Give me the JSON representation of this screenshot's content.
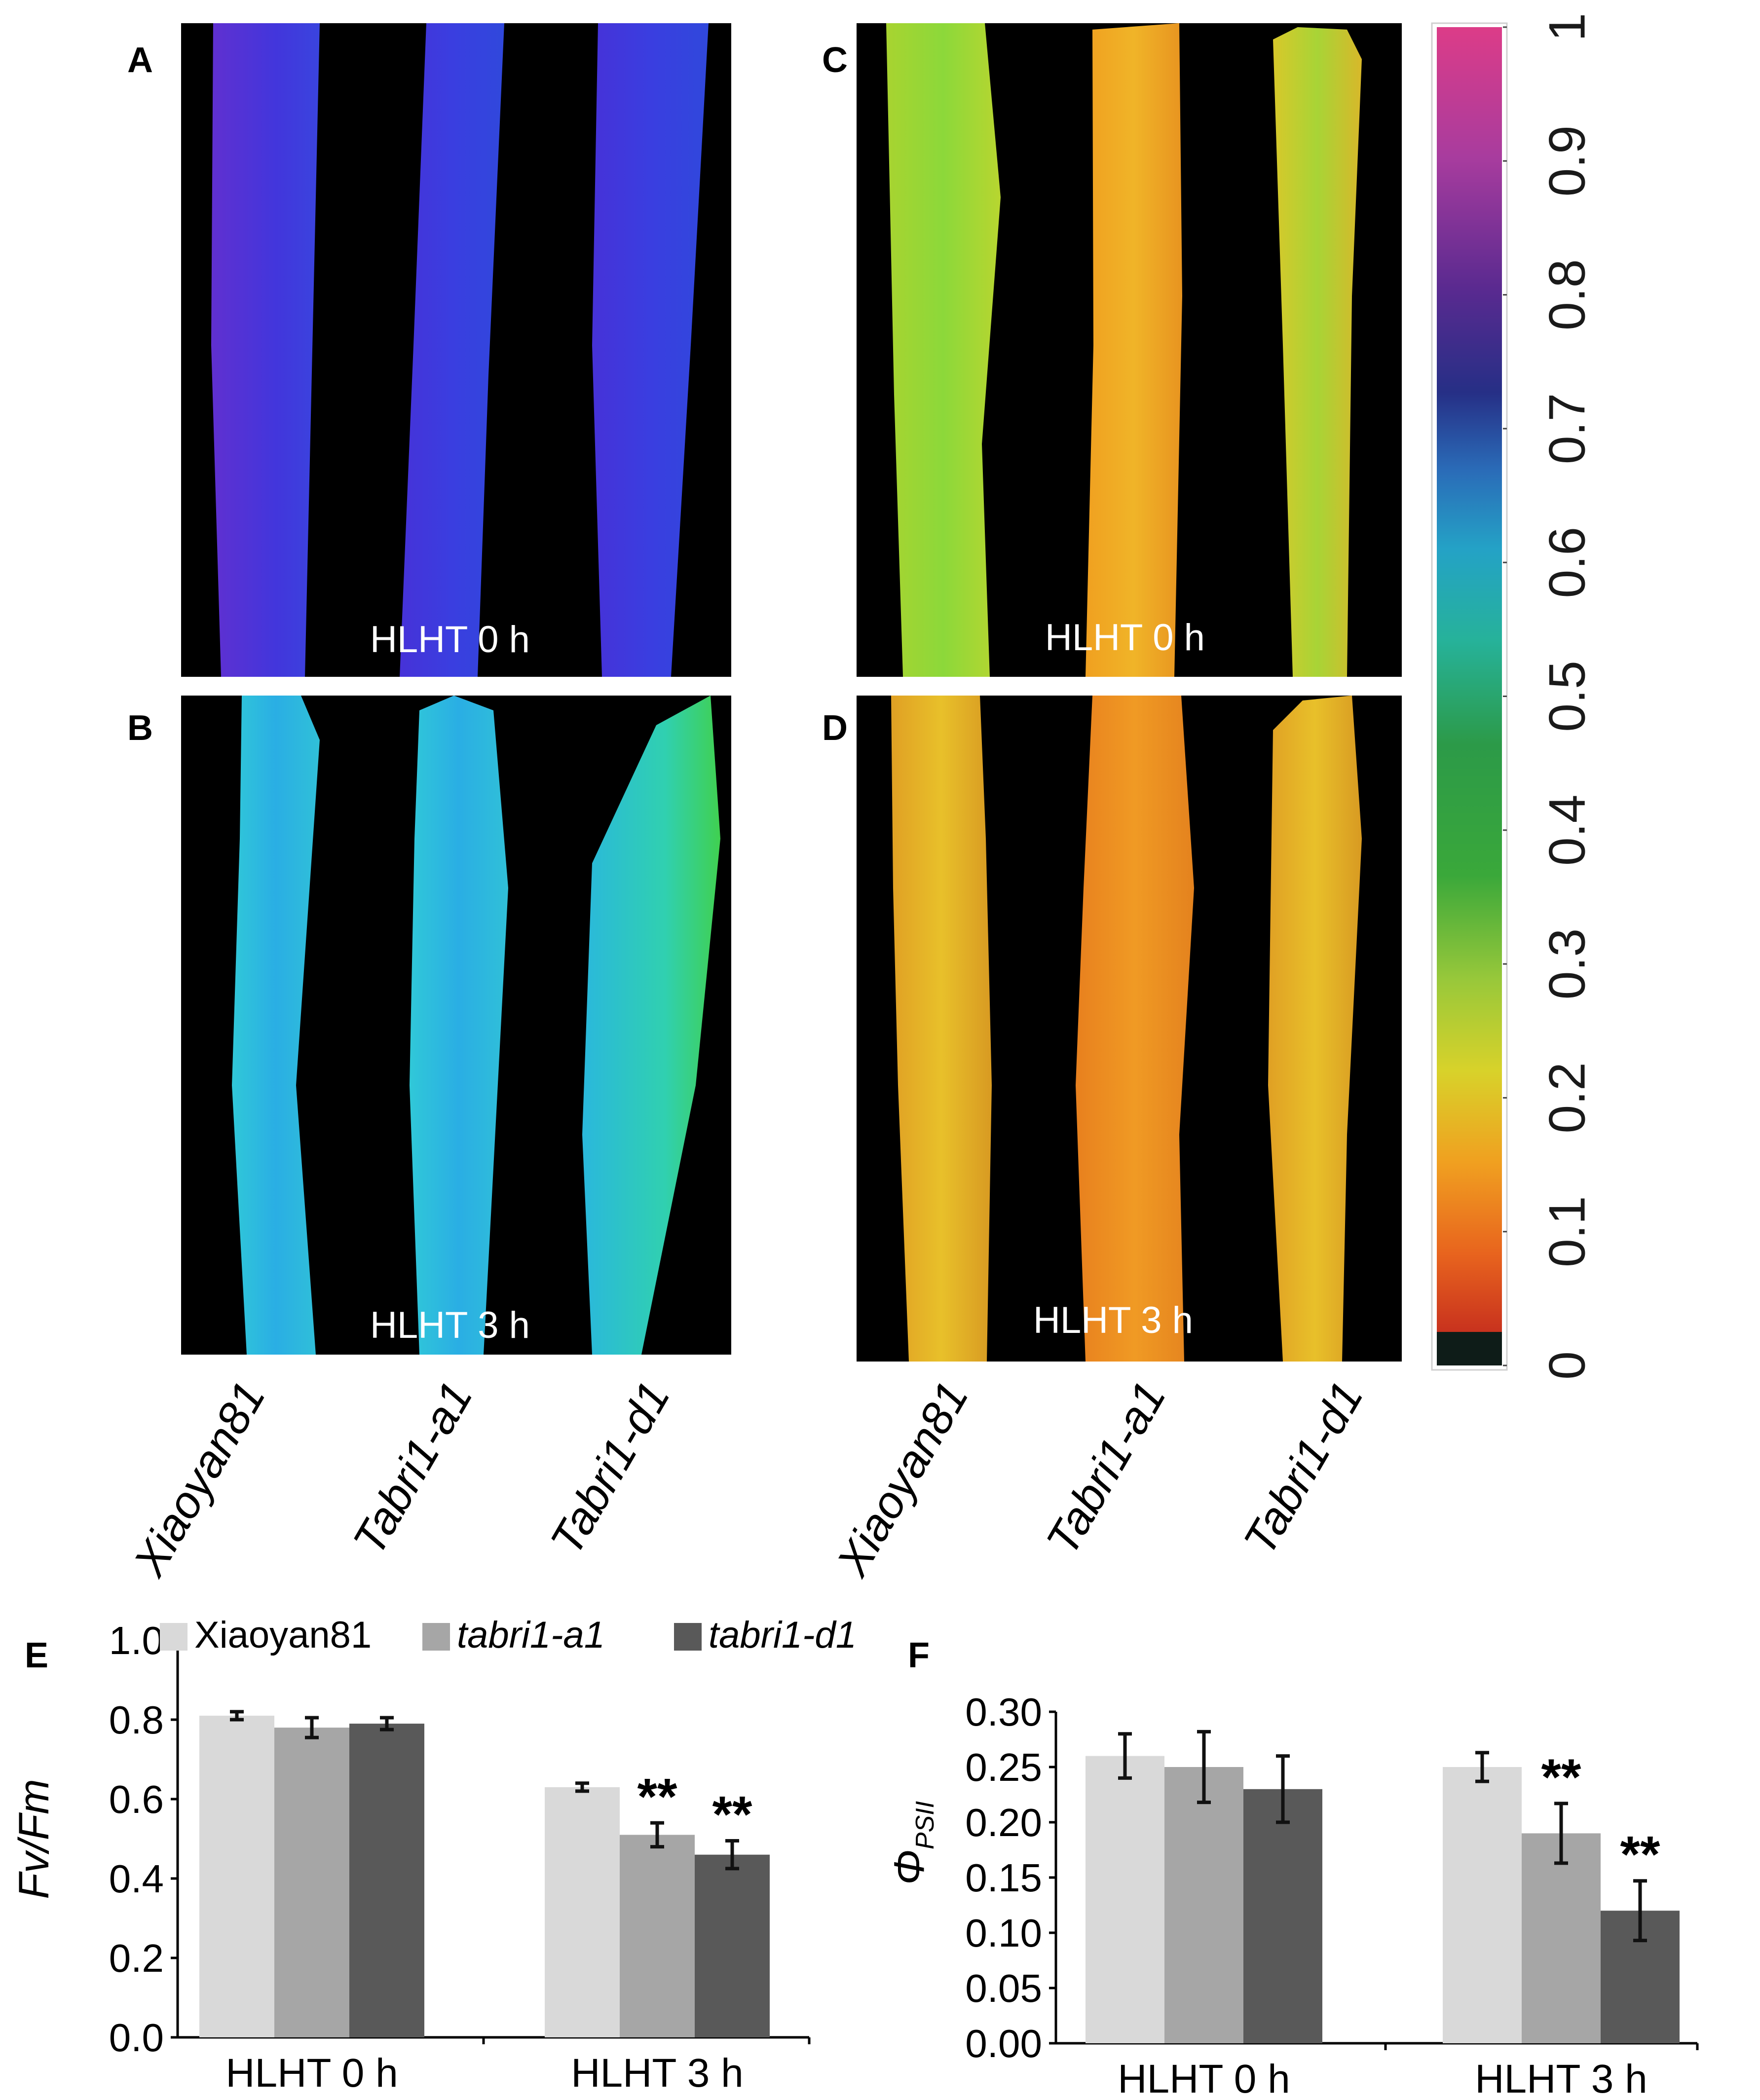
{
  "panel_labels": {
    "a": "A",
    "b": "B",
    "c": "C",
    "d": "D",
    "e": "E",
    "f": "F"
  },
  "image_labels": {
    "a": "HLHT 0 h",
    "b": "HLHT 3 h",
    "c": "HLHT 0 h",
    "d": "HLHT 3 h"
  },
  "genotype_labels": [
    "Xiaoyan81",
    "Tabri1-a1",
    "Tabri1-d1"
  ],
  "colorbar": {
    "ticks": [
      "0",
      "0.1",
      "0.2",
      "0.3",
      "0.4",
      "0.5",
      "0.6",
      "0.7",
      "0.8",
      "0.9",
      "1"
    ]
  },
  "colors": {
    "xiaoyan81": "#d9d9d9",
    "tabri1_a1": "#a6a6a6",
    "tabri1_d1": "#595959"
  },
  "chart_data": [
    {
      "panel": "E",
      "type": "bar",
      "ylabel": "Fv/Fm",
      "ylim": [
        0.0,
        1.0
      ],
      "yticks": [
        "0.0",
        "0.2",
        "0.4",
        "0.6",
        "0.8",
        "1.0"
      ],
      "categories": [
        "HLHT 0 h",
        "HLHT 3 h"
      ],
      "series": [
        {
          "name": "Xiaoyan81",
          "values": [
            0.81,
            0.63
          ],
          "errors": [
            0.01,
            0.01
          ],
          "sig": [
            "",
            ""
          ]
        },
        {
          "name": "tabri1-a1",
          "values": [
            0.78,
            0.51
          ],
          "errors": [
            0.025,
            0.03
          ],
          "sig": [
            "",
            "**"
          ]
        },
        {
          "name": "tabri1-d1",
          "values": [
            0.79,
            0.46
          ],
          "errors": [
            0.015,
            0.035
          ],
          "sig": [
            "",
            "**"
          ]
        }
      ],
      "legend": "top"
    },
    {
      "panel": "F",
      "type": "bar",
      "ylabel": "ΦPSII",
      "ylabel_main": "Φ",
      "ylabel_sub": "PSII",
      "ylim": [
        0.0,
        0.3
      ],
      "yticks": [
        "0.00",
        "0.05",
        "0.10",
        "0.15",
        "0.20",
        "0.25",
        "0.30"
      ],
      "categories": [
        "HLHT 0 h",
        "HLHT 3 h"
      ],
      "series": [
        {
          "name": "Xiaoyan81",
          "values": [
            0.26,
            0.25
          ],
          "errors": [
            0.02,
            0.013
          ],
          "sig": [
            "",
            ""
          ]
        },
        {
          "name": "tabri1-a1",
          "values": [
            0.25,
            0.19
          ],
          "errors": [
            0.032,
            0.027
          ],
          "sig": [
            "",
            "**"
          ]
        },
        {
          "name": "tabri1-d1",
          "values": [
            0.23,
            0.12
          ],
          "errors": [
            0.03,
            0.027
          ],
          "sig": [
            "",
            "**"
          ]
        }
      ]
    }
  ]
}
